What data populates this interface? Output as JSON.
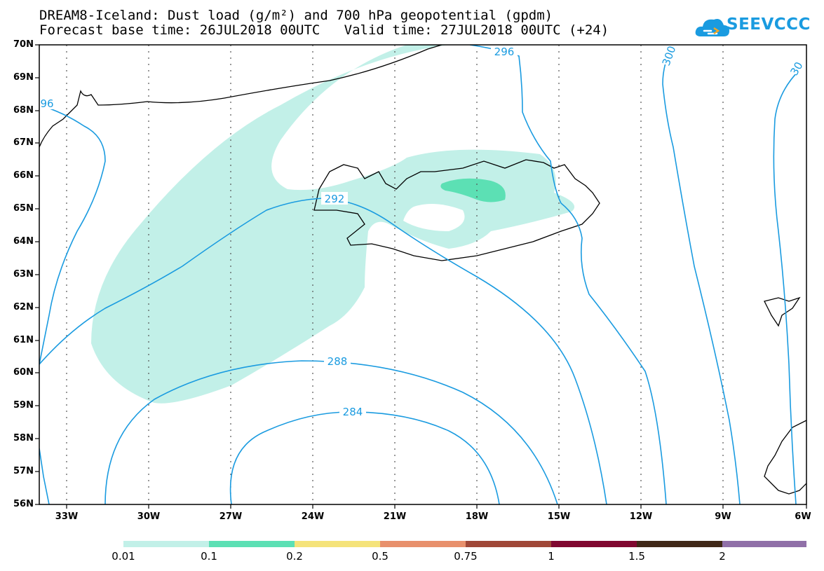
{
  "title": {
    "line1": "DREAM8-Iceland: Dust load (g/m²) and 700 hPa geopotential (gpdm)",
    "line2": "Forecast base time: 26JUL2018 00UTC   Valid time: 27JUL2018 00UTC (+24)"
  },
  "logo": {
    "text": "SEEVCCC",
    "icon": "cloud-icon",
    "color": "#1a9be0"
  },
  "lat_labels": [
    "70N",
    "69N",
    "68N",
    "67N",
    "66N",
    "65N",
    "64N",
    "63N",
    "62N",
    "61N",
    "60N",
    "59N",
    "58N",
    "57N",
    "56N"
  ],
  "lon_labels": [
    "33W",
    "30W",
    "27W",
    "24W",
    "21W",
    "18W",
    "15W",
    "12W",
    "9W",
    "6W"
  ],
  "contours": {
    "color": "#1a9be0",
    "labels": [
      "292",
      "288",
      "284",
      "296",
      "300",
      "30",
      "96",
      "296"
    ]
  },
  "colorbar": {
    "colors": [
      "#c2f0e8",
      "#5ce0b4",
      "#f5e37a",
      "#e8906c",
      "#a04838",
      "#800830",
      "#402818",
      "#9070a8"
    ],
    "labels": [
      "0.01",
      "0.1",
      "0.2",
      "0.5",
      "0.75",
      "1",
      "1.5",
      "2"
    ]
  }
}
